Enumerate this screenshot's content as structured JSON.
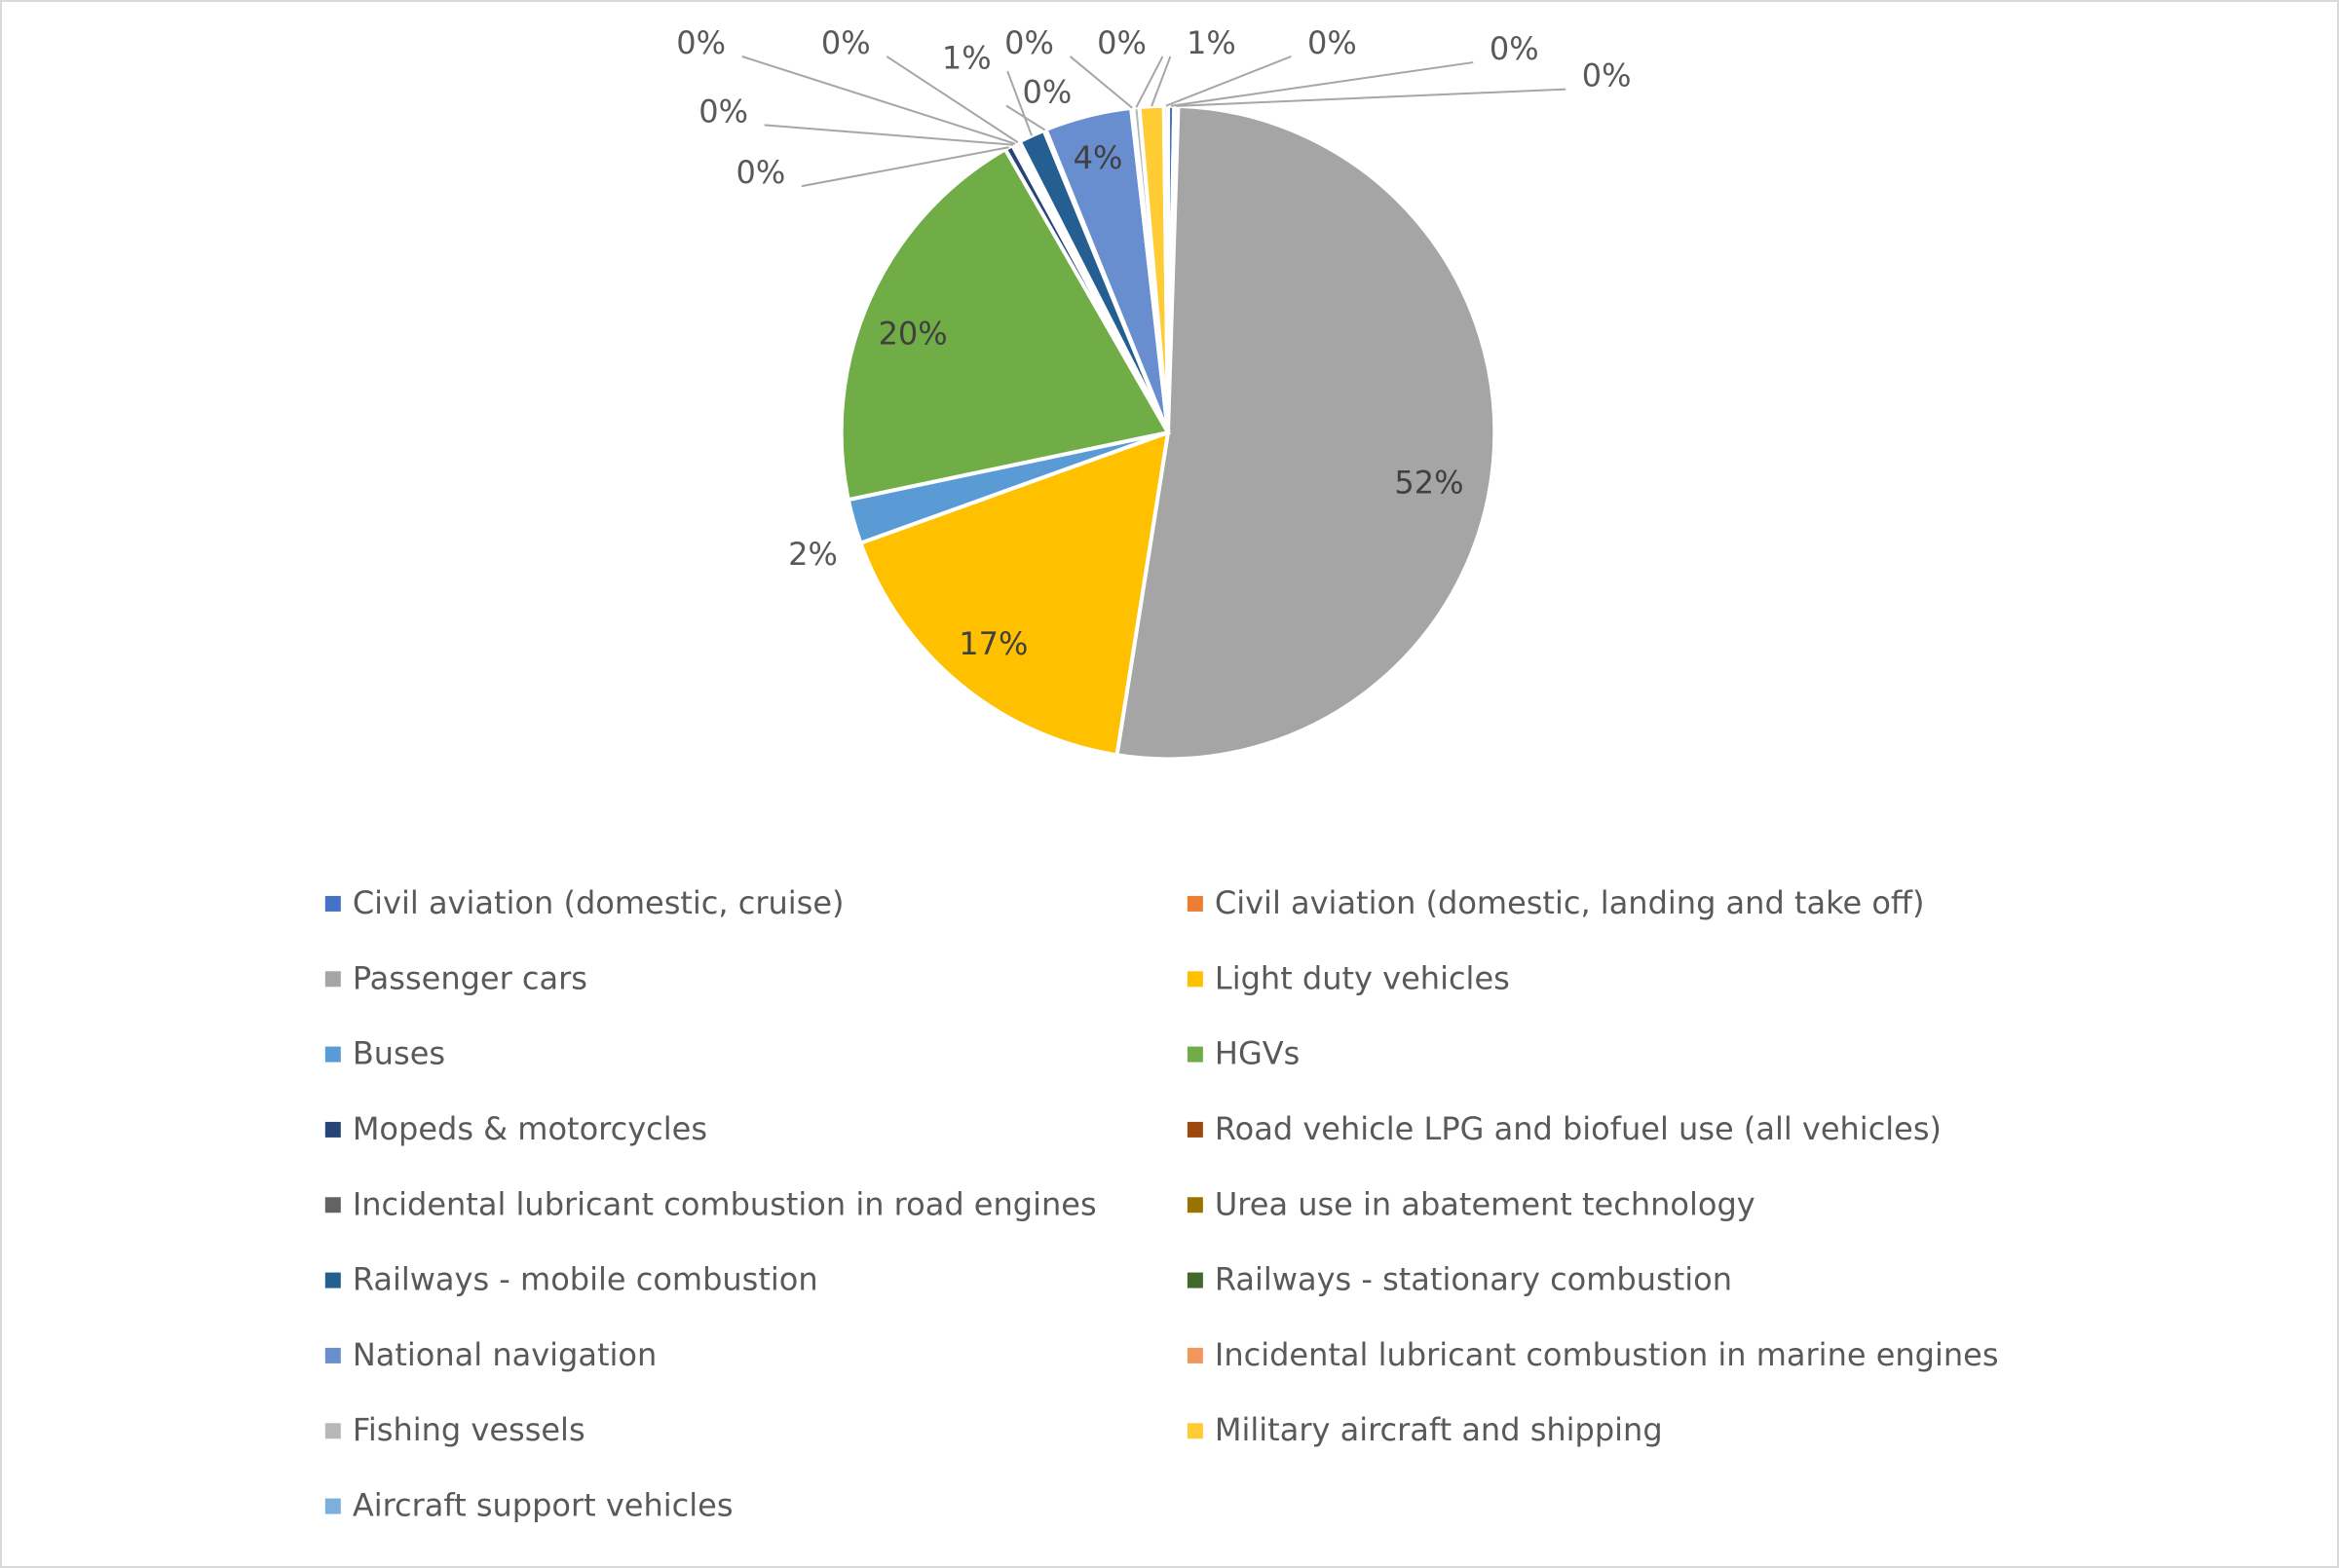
{
  "chart_data": {
    "type": "pie",
    "categories": [
      "Civil aviation (domestic, cruise)",
      "Civil aviation (domestic, landing and take off)",
      "Passenger cars",
      "Light duty vehicles",
      "Buses",
      "HGVs",
      "Mopeds & motorcycles",
      "Road vehicle LPG and biofuel use (all vehicles)",
      "Incidental lubricant combustion in road engines",
      "Urea use in abatement technology",
      "Railways - mobile combustion",
      "Railways - stationary combustion",
      "National navigation",
      "Incidental lubricant combustion in marine engines",
      "Fishing vessels",
      "Military aircraft and shipping",
      "Aircraft support vehicles"
    ],
    "values": [
      0.3,
      0.2,
      52,
      17,
      2.2,
      20,
      0.4,
      0.1,
      0.1,
      0.2,
      1.3,
      0.1,
      4.3,
      0.1,
      0.3,
      1.2,
      0.2
    ],
    "value_labels": [
      "0%",
      "0%",
      "52%",
      "17%",
      "2%",
      "20%",
      "0%",
      "0%",
      "0%",
      "0%",
      "1%",
      "0%",
      "4%",
      "0%",
      "0%",
      "1%",
      "0%"
    ],
    "colors": [
      "#4472c4",
      "#ed7d31",
      "#a5a5a5",
      "#ffc000",
      "#5b9bd5",
      "#70ad47",
      "#264478",
      "#9e480e",
      "#636363",
      "#997300",
      "#255e91",
      "#43682b",
      "#698ed0",
      "#f1975a",
      "#b7b7b7",
      "#ffcd33",
      "#7cafdd"
    ]
  }
}
